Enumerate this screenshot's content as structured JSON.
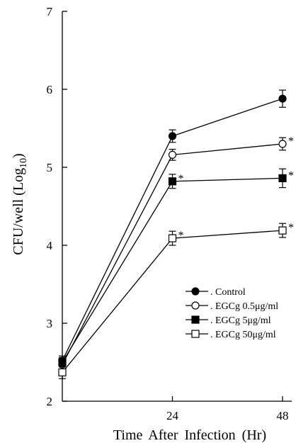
{
  "chart_data": {
    "type": "line",
    "title": "",
    "xlabel": "Time After Infection (Hr)",
    "ylabel_main": "CFU/well (Log",
    "ylabel_sub": "10",
    "ylabel_close": ")",
    "xlim": [
      0,
      50
    ],
    "ylim": [
      2,
      7
    ],
    "x_ticks": [
      24,
      48
    ],
    "x_tick_labels": [
      "24",
      "48"
    ],
    "y_ticks": [
      2,
      3,
      4,
      5,
      6,
      7
    ],
    "y_tick_labels": [
      "2",
      "3",
      "4",
      "5",
      "6",
      "7"
    ],
    "grid": false,
    "legend_position": "bottom-right",
    "x": [
      0,
      24,
      48
    ],
    "series": [
      {
        "name": ". Control",
        "marker": "filled-circle",
        "values": [
          2.52,
          5.4,
          5.88
        ],
        "errors": [
          0.06,
          0.08,
          0.11
        ],
        "significance": [
          "",
          "",
          ""
        ]
      },
      {
        "name": ". EGCg 0.5μg/ml",
        "marker": "open-circle",
        "values": [
          2.47,
          5.16,
          5.3
        ],
        "errors": [
          0.06,
          0.07,
          0.08
        ],
        "significance": [
          "",
          "",
          "*"
        ]
      },
      {
        "name": ". EGCg 5μg/ml",
        "marker": "filled-square",
        "values": [
          2.5,
          4.82,
          4.86
        ],
        "errors": [
          0.06,
          0.09,
          0.12
        ],
        "significance": [
          "",
          "*",
          "*"
        ]
      },
      {
        "name": ". EGCg 50μg/ml",
        "marker": "open-square",
        "values": [
          2.37,
          4.09,
          4.19
        ],
        "errors": [
          0.08,
          0.09,
          0.09
        ],
        "significance": [
          "",
          "*",
          "*"
        ]
      }
    ]
  }
}
